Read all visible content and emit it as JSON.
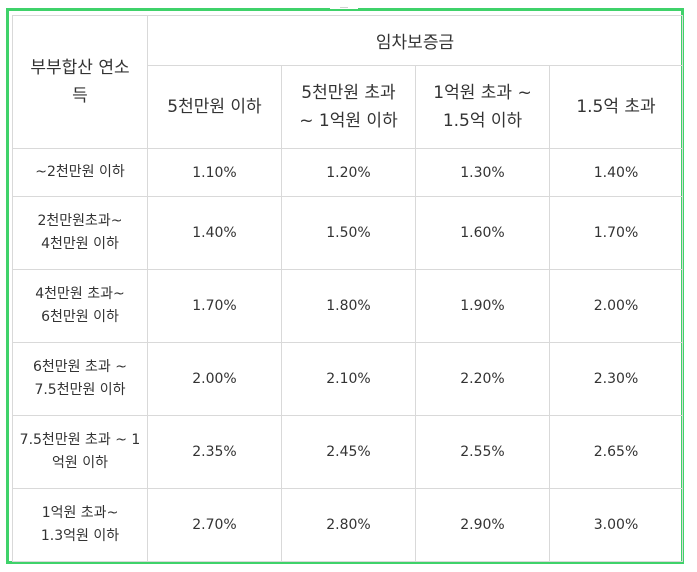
{
  "table": {
    "corner_header": "부부합산 연소득",
    "group_header": "임차보증금",
    "columns": [
      "5천만원 이하",
      "5천만원 초과 ~ 1억원 이하",
      "1억원 초과 ~ 1.5억 이하",
      "1.5억 초과"
    ],
    "rows": [
      {
        "label": "~2천만원 이하",
        "values": [
          "1.10%",
          "1.20%",
          "1.30%",
          "1.40%"
        ]
      },
      {
        "label": "2천만원초과~ 4천만원 이하",
        "values": [
          "1.40%",
          "1.50%",
          "1.60%",
          "1.70%"
        ]
      },
      {
        "label": "4천만원 초과~ 6천만원 이하",
        "values": [
          "1.70%",
          "1.80%",
          "1.90%",
          "2.00%"
        ]
      },
      {
        "label": "6천만원 초과 ~ 7.5천만원 이하",
        "values": [
          "2.00%",
          "2.10%",
          "2.20%",
          "2.30%"
        ]
      },
      {
        "label": "7.5천만원 초과 ~ 1억원 이하",
        "values": [
          "2.35%",
          "2.45%",
          "2.55%",
          "2.65%"
        ]
      },
      {
        "label": "1억원 초과~ 1.3억원 이하",
        "values": [
          "2.70%",
          "2.80%",
          "2.90%",
          "3.00%"
        ]
      }
    ]
  },
  "colors": {
    "frame_border": "#3fd26a",
    "grid": "#d9d9d9",
    "text": "#444444"
  }
}
